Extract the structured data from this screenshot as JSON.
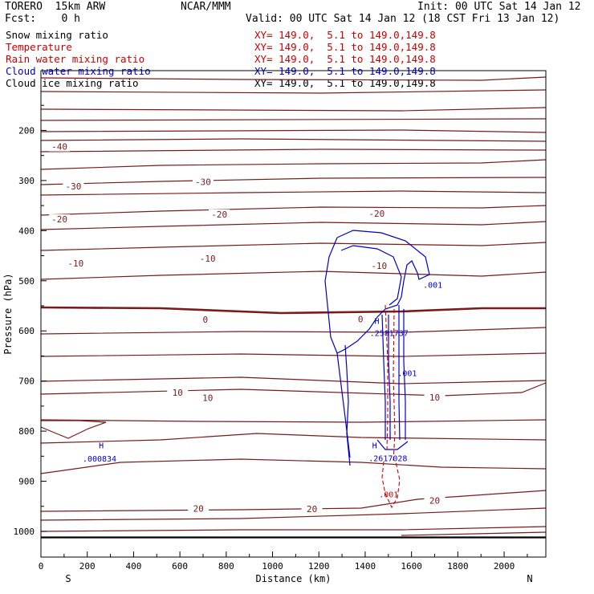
{
  "header": {
    "model": "TORERO  15km ARW",
    "center": "NCAR/MMM",
    "init": "Init: 00 UTC Sat 14 Jan 12",
    "fcst": "Fcst:    0 h",
    "valid": "Valid: 00 UTC Sat 14 Jan 12 (18 CST Fri 13 Jan 12)"
  },
  "colors": {
    "temp": "#7a1a1a",
    "blue": "#0000cc",
    "red": "#cc0000",
    "black": "#000000"
  },
  "fields": [
    {
      "name": "Snow mixing ratio",
      "xy": "XY= 149.0,  5.1 to 149.0,149.8",
      "color": "#000000"
    },
    {
      "name": "Temperature",
      "xy": "XY= 149.0,  5.1 to 149.0,149.8",
      "color": "#cc0000"
    },
    {
      "name": "Rain water mixing ratio",
      "xy": "XY= 149.0,  5.1 to 149.0,149.8",
      "color": "#cc0000"
    },
    {
      "name": "Cloud water mixing ratio",
      "xy": "XY= 149.0,  5.1 to 149.0,149.8",
      "color": "#0000cc"
    },
    {
      "name": "Cloud ice mixing ratio",
      "xy": "XY= 149.0,  5.1 to 149.0,149.8",
      "color": "#000000"
    }
  ],
  "chart_data": {
    "type": "cross-section contour",
    "xlabel": "Distance (km)",
    "ylabel": "Pressure (hPa)",
    "xlim": [
      0,
      2180
    ],
    "ylim": [
      1050,
      100
    ],
    "x_ticks": [
      0,
      200,
      400,
      600,
      800,
      1000,
      1200,
      1400,
      1600,
      1800,
      2000
    ],
    "y_ticks": [
      200,
      300,
      400,
      500,
      600,
      700,
      800,
      900,
      1000
    ],
    "x_end_labels": {
      "left": "S",
      "right": "N"
    },
    "surface_pressure": 1012,
    "temperature_isotherms": [
      {
        "value": -40,
        "label": "-40",
        "label_points": [
          {
            "x": 80,
            "p": 237
          }
        ]
      },
      {
        "value": -30,
        "label": "-30",
        "label_points": [
          {
            "x": 140,
            "p": 316
          },
          {
            "x": 700,
            "p": 307
          }
        ]
      },
      {
        "value": -20,
        "label": "-20",
        "label_points": [
          {
            "x": 80,
            "p": 382
          },
          {
            "x": 770,
            "p": 372
          },
          {
            "x": 1450,
            "p": 371
          }
        ]
      },
      {
        "value": -10,
        "label": "-10",
        "label_points": [
          {
            "x": 150,
            "p": 470
          },
          {
            "x": 720,
            "p": 460
          },
          {
            "x": 1460,
            "p": 475
          }
        ]
      },
      {
        "value": 0,
        "label": "0",
        "label_points": [
          {
            "x": 710,
            "p": 582
          },
          {
            "x": 1380,
            "p": 581
          }
        ],
        "bold": true
      },
      {
        "value": 10,
        "label": "10",
        "label_points": [
          {
            "x": 590,
            "p": 728
          },
          {
            "x": 720,
            "p": 738
          },
          {
            "x": 1700,
            "p": 737
          }
        ]
      },
      {
        "value": 20,
        "label": "20",
        "label_points": [
          {
            "x": 680,
            "p": 959
          },
          {
            "x": 1170,
            "p": 960
          },
          {
            "x": 1700,
            "p": 943
          }
        ]
      }
    ],
    "annotations": [
      {
        "text": "H",
        "x": 250,
        "p": 834,
        "color": "blue"
      },
      {
        "text": ".000834",
        "x": 180,
        "p": 861,
        "color": "blue"
      },
      {
        "text": ".001",
        "x": 1650,
        "p": 514,
        "color": "blue"
      },
      {
        "text": ".001",
        "x": 1540,
        "p": 690,
        "color": "blue"
      },
      {
        "text": "H",
        "x": 1440,
        "p": 586,
        "color": "blue"
      },
      {
        "text": ".2581737",
        "x": 1420,
        "p": 610,
        "color": "blue"
      },
      {
        "text": "H",
        "x": 1430,
        "p": 834,
        "color": "blue"
      },
      {
        "text": ".2617028",
        "x": 1415,
        "p": 860,
        "color": "blue"
      },
      {
        "text": ".001",
        "x": 1460,
        "p": 932,
        "color": "red"
      }
    ]
  }
}
